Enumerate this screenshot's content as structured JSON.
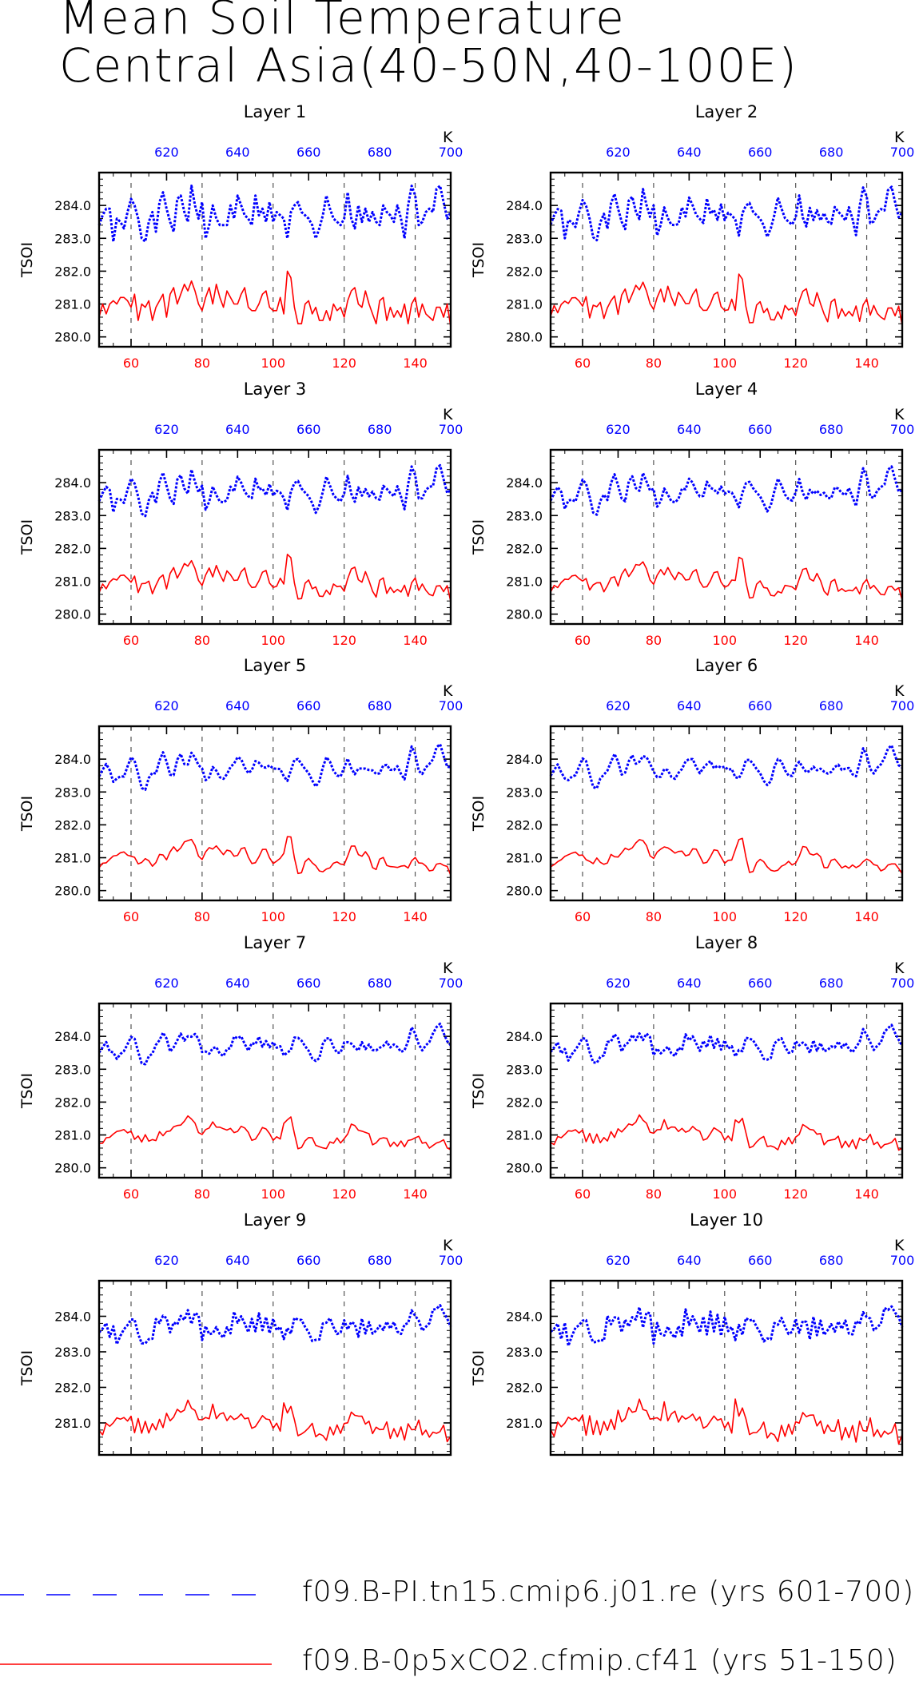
{
  "title": {
    "line1": "Mean Soil Temperature",
    "line2": "Central Asia(40-50N,40-100E)"
  },
  "legend": [
    {
      "label": "f09.B-PI.tn15.cmip6.j01.re (yrs 601-700)",
      "color": "#0000ff",
      "style": "long-dashed"
    },
    {
      "label": "f09.B-0p5xCO2.cfmip.cf41 (yrs 51-150)",
      "color": "#ff0000",
      "style": "solid"
    }
  ],
  "chart_data": {
    "type": "line",
    "panel_titles": [
      "Layer 1",
      "Layer 2",
      "Layer 3",
      "Layer 4",
      "Layer 5",
      "Layer 6",
      "Layer 7",
      "Layer 8",
      "Layer 9",
      "Layer 10"
    ],
    "ylabel": "TSOI",
    "bottom_axis": {
      "range": [
        51,
        150
      ],
      "ticks": [
        "60",
        "80",
        "100",
        "120",
        "140"
      ],
      "color": "#ff0000"
    },
    "top_axis": {
      "range": [
        601,
        700
      ],
      "ticks": [
        "620",
        "640",
        "660",
        "680",
        "700"
      ],
      "label": "K",
      "color": "#0000ff"
    },
    "ylim_layers_1_to_8": [
      279.7,
      285.0
    ],
    "yticks_layers_1_to_8": [
      "280.0",
      "281.0",
      "282.0",
      "283.0",
      "284.0"
    ],
    "ylim_layers_9_to_10": [
      280.1,
      285.0
    ],
    "yticks_layers_9_to_10": [
      "281.0",
      "282.0",
      "283.0",
      "284.0"
    ],
    "vertical_grid": "dashed at 60, 80, 100, 120, 140",
    "x_start": 51,
    "series": [
      {
        "name": "f09.B-PI.tn15.cmip6.j01.re (yrs 601-700)",
        "color": "#0000ff",
        "values": [
          283.4,
          283.7,
          283.9,
          283.9,
          282.9,
          283.6,
          283.5,
          283.3,
          283.8,
          284.2,
          284.0,
          283.6,
          283.0,
          282.9,
          283.5,
          283.8,
          283.2,
          284.1,
          284.4,
          283.9,
          283.5,
          283.2,
          284.2,
          284.3,
          283.8,
          283.5,
          284.6,
          284.0,
          283.6,
          284.1,
          283.0,
          283.4,
          284.0,
          283.6,
          283.4,
          283.4,
          283.4,
          284.0,
          283.6,
          284.3,
          284.0,
          283.7,
          283.6,
          283.4,
          284.3,
          283.7,
          283.9,
          283.5,
          284.1,
          283.5,
          283.8,
          283.7,
          283.6,
          283.0,
          283.8,
          284.0,
          284.1,
          283.8,
          283.7,
          283.6,
          283.4,
          283.0,
          283.3,
          283.7,
          284.3,
          283.9,
          283.6,
          283.5,
          283.4,
          283.6,
          284.4,
          283.6,
          283.3,
          284.0,
          283.5,
          283.9,
          283.5,
          283.8,
          283.5,
          283.4,
          284.0,
          283.8,
          283.7,
          283.5,
          284.0,
          283.6,
          283.0,
          284.0,
          284.6,
          284.3,
          283.4,
          283.5,
          283.8,
          283.9,
          283.8,
          284.5,
          284.6,
          284.1,
          283.6,
          283.8
        ]
      },
      {
        "name": "f09.B-0p5xCO2.cfmip.cf41 (yrs 51-150)",
        "color": "#ff0000",
        "values": [
          280.6,
          281.0,
          280.7,
          281.0,
          281.1,
          281.0,
          281.2,
          281.2,
          281.1,
          280.9,
          281.3,
          280.5,
          281.0,
          280.9,
          281.1,
          280.5,
          280.9,
          281.1,
          281.3,
          280.6,
          281.3,
          281.5,
          281.0,
          281.3,
          281.6,
          281.4,
          281.7,
          281.4,
          281.0,
          280.8,
          281.2,
          281.5,
          281.0,
          281.6,
          281.2,
          280.9,
          281.4,
          281.2,
          281.0,
          281.0,
          281.3,
          281.5,
          280.9,
          280.8,
          280.8,
          281.0,
          281.3,
          281.4,
          280.9,
          280.8,
          280.8,
          281.2,
          280.7,
          282.0,
          281.8,
          280.9,
          280.4,
          280.4,
          281.0,
          281.1,
          280.7,
          280.9,
          280.5,
          280.5,
          280.8,
          280.5,
          281.0,
          280.8,
          280.9,
          280.6,
          281.1,
          281.4,
          281.5,
          281.0,
          280.9,
          281.4,
          281.0,
          280.7,
          280.4,
          281.1,
          281.2,
          280.5,
          280.9,
          280.6,
          280.8,
          280.6,
          281.0,
          280.4,
          281.0,
          281.2,
          280.6,
          281.0,
          280.7,
          280.6,
          280.5,
          280.9,
          280.9,
          280.6,
          281.0,
          280.3
        ]
      }
    ]
  }
}
